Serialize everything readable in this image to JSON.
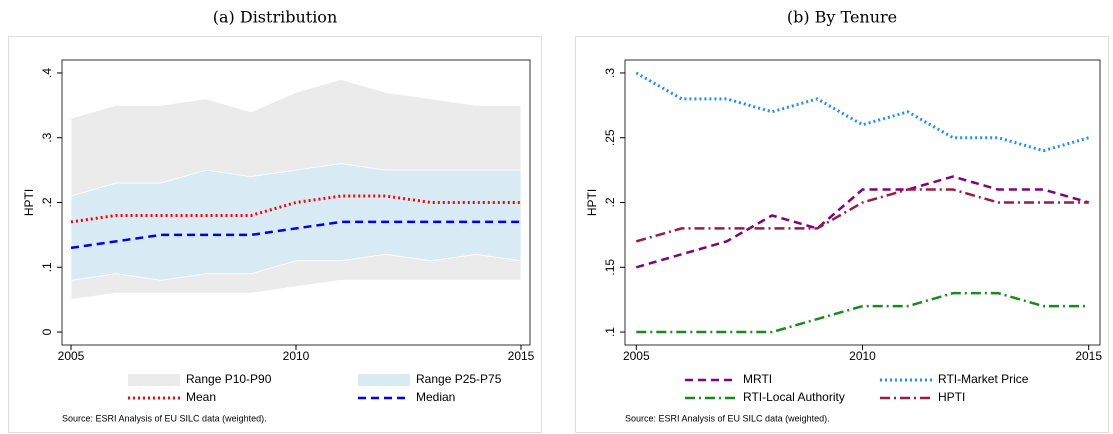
{
  "chart_data": [
    {
      "type": "line",
      "title": "(a) Distribution",
      "ylabel": "HPTI",
      "source": "Source:  ESRI Analysis of EU SILC data (weighted).",
      "x": [
        2005,
        2006,
        2007,
        2008,
        2009,
        2010,
        2011,
        2012,
        2013,
        2014,
        2015
      ],
      "xlim": [
        2004.8,
        2015.2
      ],
      "xticks": [
        2005,
        2010,
        2015
      ],
      "ylim": [
        -0.02,
        0.42
      ],
      "yticks": [
        0,
        {
          "value": 0.1,
          "label": ".1"
        },
        {
          "value": 0.2,
          "label": ".2"
        },
        {
          "value": 0.3,
          "label": ".3"
        },
        {
          "value": 0.4,
          "label": ".4"
        }
      ],
      "series": [
        {
          "name": "Range P10-P90",
          "color": "#ebebeb",
          "low": [
            0.05,
            0.06,
            0.06,
            0.06,
            0.06,
            0.07,
            0.08,
            0.08,
            0.08,
            0.08,
            0.08
          ],
          "high": [
            0.33,
            0.35,
            0.35,
            0.36,
            0.34,
            0.37,
            0.39,
            0.37,
            0.36,
            0.35,
            0.35
          ]
        },
        {
          "name": "Range P25-P75",
          "color": "#d8ebf5",
          "low": [
            0.08,
            0.09,
            0.08,
            0.09,
            0.09,
            0.11,
            0.11,
            0.12,
            0.11,
            0.12,
            0.11
          ],
          "high": [
            0.21,
            0.23,
            0.23,
            0.25,
            0.24,
            0.25,
            0.26,
            0.25,
            0.25,
            0.25,
            0.25
          ]
        },
        {
          "name": "Mean",
          "color": "#ff0000",
          "dash": "dot",
          "values": [
            0.17,
            0.18,
            0.18,
            0.18,
            0.18,
            0.2,
            0.21,
            0.21,
            0.2,
            0.2,
            0.2
          ]
        },
        {
          "name": "Median",
          "color": "#0000e6",
          "dash": "dash",
          "values": [
            0.13,
            0.14,
            0.15,
            0.15,
            0.15,
            0.16,
            0.17,
            0.17,
            0.17,
            0.17,
            0.17
          ]
        }
      ]
    },
    {
      "type": "line",
      "title": "(b) By Tenure",
      "ylabel": "HPTI",
      "source": "Source:  ESRI Analysis of EU SILC data (weighted).",
      "x": [
        2005,
        2006,
        2007,
        2008,
        2009,
        2010,
        2011,
        2012,
        2013,
        2014,
        2015
      ],
      "xlim": [
        2004.75,
        2015.25
      ],
      "xticks": [
        2005,
        2010,
        2015
      ],
      "ylim": [
        0.09,
        0.31
      ],
      "yticks": [
        {
          "value": 0.1,
          "label": ".1"
        },
        {
          "value": 0.15,
          "label": ".15"
        },
        {
          "value": 0.2,
          "label": ".2"
        },
        {
          "value": 0.25,
          "label": ".25"
        },
        {
          "value": 0.3,
          "label": ".3"
        }
      ],
      "series": [
        {
          "name": "MRTI",
          "color": "#800080",
          "dash": "dash",
          "values": [
            0.15,
            0.16,
            0.17,
            0.19,
            0.18,
            0.21,
            0.21,
            0.22,
            0.21,
            0.21,
            0.2
          ]
        },
        {
          "name": "RTI-Market Price",
          "color": "#1e8fff",
          "dash": "dot",
          "values": [
            0.3,
            0.28,
            0.28,
            0.27,
            0.28,
            0.26,
            0.27,
            0.25,
            0.25,
            0.24,
            0.25
          ]
        },
        {
          "name": "RTI-Local Authority",
          "color": "#1a8a1a",
          "dash": "dashdot",
          "values": [
            0.1,
            0.1,
            0.1,
            0.1,
            0.11,
            0.12,
            0.12,
            0.13,
            0.13,
            0.12,
            0.12
          ]
        },
        {
          "name": "HPTI",
          "color": "#9b1b45",
          "dash": "dashdot",
          "values": [
            0.17,
            0.18,
            0.18,
            0.18,
            0.18,
            0.2,
            0.21,
            0.21,
            0.2,
            0.2,
            0.2
          ]
        }
      ]
    }
  ]
}
